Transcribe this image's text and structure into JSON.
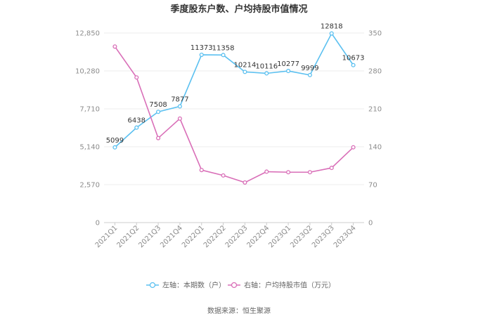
{
  "chart_data": {
    "type": "line",
    "title": "季度股东户数、户均持股市值情况",
    "categories": [
      "2021Q1",
      "2021Q2",
      "2021Q3",
      "2021Q4",
      "2022Q1",
      "2022Q2",
      "2022Q3",
      "2022Q4",
      "2023Q1",
      "2023Q2",
      "2023Q3",
      "2023Q4"
    ],
    "left_axis": {
      "min": 0,
      "max": 12850,
      "ticks": [
        "0",
        "2,570",
        "5,140",
        "7,710",
        "10,280",
        "12,850"
      ]
    },
    "right_axis": {
      "min": 0,
      "max": 350,
      "ticks": [
        "0",
        "70",
        "140",
        "210",
        "280",
        "350"
      ]
    },
    "series": [
      {
        "name": "左轴：本期数（户）",
        "axis": "left",
        "color": "#5bc0f0",
        "values": [
          5099,
          6438,
          7508,
          7877,
          11373,
          11358,
          10214,
          10116,
          10277,
          9999,
          12818,
          10673
        ],
        "labels": [
          "5099",
          "6438",
          "7508",
          "7877",
          "11373",
          "11358",
          "10214",
          "10116",
          "10277",
          "9999",
          "12818",
          "10673"
        ]
      },
      {
        "name": "右轴：户均持股市值（万元）",
        "axis": "right",
        "color": "#d96fb8",
        "values": [
          325,
          268,
          156,
          192,
          97,
          87,
          74,
          94,
          93,
          93,
          101,
          139
        ]
      }
    ],
    "grid": true,
    "legend_position": "bottom"
  },
  "source_text": "数据来源：恒生聚源"
}
